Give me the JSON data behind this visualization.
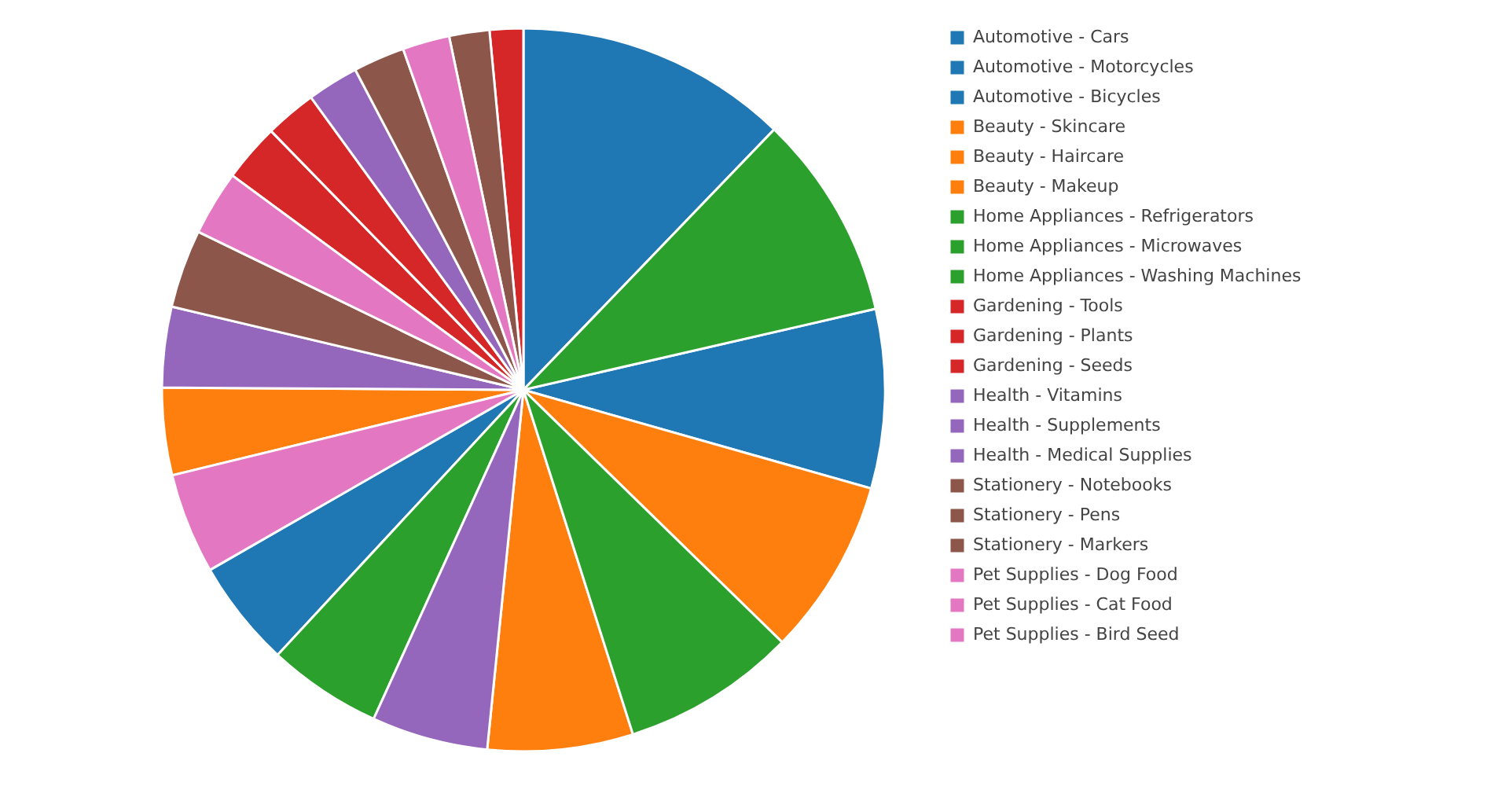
{
  "chart_data": {
    "type": "pie",
    "categories": [
      "Automotive - Cars",
      "Automotive - Motorcycles",
      "Automotive - Bicycles",
      "Beauty - Skincare",
      "Beauty - Haircare",
      "Beauty - Makeup",
      "Home Appliances - Refrigerators",
      "Home Appliances - Microwaves",
      "Home Appliances - Washing Machines",
      "Gardening - Tools",
      "Gardening - Plants",
      "Gardening - Seeds",
      "Health - Vitamins",
      "Health - Supplements",
      "Health - Medical Supplies",
      "Stationery - Notebooks",
      "Stationery - Pens",
      "Stationery - Markers",
      "Pet Supplies - Dog Food",
      "Pet Supplies - Cat Food",
      "Pet Supplies - Bird Seed"
    ],
    "values": [
      12.2,
      8.0,
      4.8,
      7.9,
      6.5,
      3.9,
      9.2,
      7.8,
      5.1,
      2.6,
      2.3,
      1.5,
      5.2,
      3.6,
      2.3,
      3.5,
      2.3,
      1.8,
      4.5,
      2.9,
      2.1
    ],
    "colors": [
      "#1f77b4",
      "#1f77b4",
      "#1f77b4",
      "#ff7f0e",
      "#ff7f0e",
      "#ff7f0e",
      "#2ca02c",
      "#2ca02c",
      "#2ca02c",
      "#d62728",
      "#d62728",
      "#d62728",
      "#9467bd",
      "#9467bd",
      "#9467bd",
      "#8c564b",
      "#8c564b",
      "#8c564b",
      "#e377c2",
      "#e377c2",
      "#e377c2"
    ],
    "legend": "top right"
  }
}
